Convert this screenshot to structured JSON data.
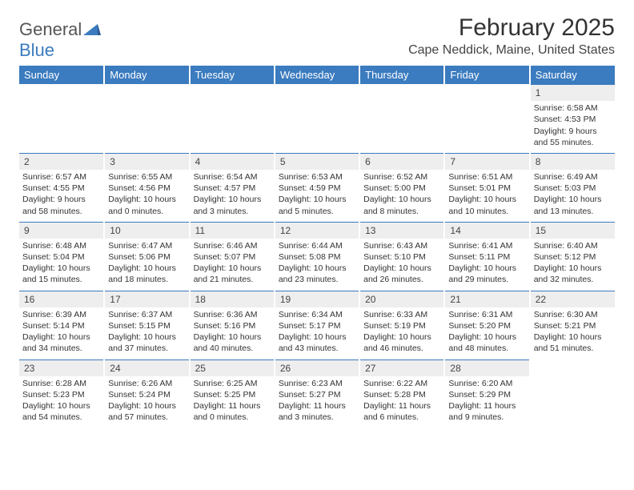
{
  "brand": {
    "part1": "General",
    "part2": "Blue"
  },
  "title": "February 2025",
  "location": "Cape Neddick, Maine, United States",
  "colors": {
    "header_bg": "#3b7bbf",
    "header_text": "#ffffff",
    "daynum_bg": "#eeeeee",
    "daynum_border": "#3b7bbf",
    "body_text": "#333333",
    "page_bg": "#ffffff"
  },
  "weekdays": [
    "Sunday",
    "Monday",
    "Tuesday",
    "Wednesday",
    "Thursday",
    "Friday",
    "Saturday"
  ],
  "weeks": [
    [
      null,
      null,
      null,
      null,
      null,
      null,
      {
        "n": "1",
        "sr": "6:58 AM",
        "ss": "4:53 PM",
        "dl": "9 hours and 55 minutes."
      }
    ],
    [
      {
        "n": "2",
        "sr": "6:57 AM",
        "ss": "4:55 PM",
        "dl": "9 hours and 58 minutes."
      },
      {
        "n": "3",
        "sr": "6:55 AM",
        "ss": "4:56 PM",
        "dl": "10 hours and 0 minutes."
      },
      {
        "n": "4",
        "sr": "6:54 AM",
        "ss": "4:57 PM",
        "dl": "10 hours and 3 minutes."
      },
      {
        "n": "5",
        "sr": "6:53 AM",
        "ss": "4:59 PM",
        "dl": "10 hours and 5 minutes."
      },
      {
        "n": "6",
        "sr": "6:52 AM",
        "ss": "5:00 PM",
        "dl": "10 hours and 8 minutes."
      },
      {
        "n": "7",
        "sr": "6:51 AM",
        "ss": "5:01 PM",
        "dl": "10 hours and 10 minutes."
      },
      {
        "n": "8",
        "sr": "6:49 AM",
        "ss": "5:03 PM",
        "dl": "10 hours and 13 minutes."
      }
    ],
    [
      {
        "n": "9",
        "sr": "6:48 AM",
        "ss": "5:04 PM",
        "dl": "10 hours and 15 minutes."
      },
      {
        "n": "10",
        "sr": "6:47 AM",
        "ss": "5:06 PM",
        "dl": "10 hours and 18 minutes."
      },
      {
        "n": "11",
        "sr": "6:46 AM",
        "ss": "5:07 PM",
        "dl": "10 hours and 21 minutes."
      },
      {
        "n": "12",
        "sr": "6:44 AM",
        "ss": "5:08 PM",
        "dl": "10 hours and 23 minutes."
      },
      {
        "n": "13",
        "sr": "6:43 AM",
        "ss": "5:10 PM",
        "dl": "10 hours and 26 minutes."
      },
      {
        "n": "14",
        "sr": "6:41 AM",
        "ss": "5:11 PM",
        "dl": "10 hours and 29 minutes."
      },
      {
        "n": "15",
        "sr": "6:40 AM",
        "ss": "5:12 PM",
        "dl": "10 hours and 32 minutes."
      }
    ],
    [
      {
        "n": "16",
        "sr": "6:39 AM",
        "ss": "5:14 PM",
        "dl": "10 hours and 34 minutes."
      },
      {
        "n": "17",
        "sr": "6:37 AM",
        "ss": "5:15 PM",
        "dl": "10 hours and 37 minutes."
      },
      {
        "n": "18",
        "sr": "6:36 AM",
        "ss": "5:16 PM",
        "dl": "10 hours and 40 minutes."
      },
      {
        "n": "19",
        "sr": "6:34 AM",
        "ss": "5:17 PM",
        "dl": "10 hours and 43 minutes."
      },
      {
        "n": "20",
        "sr": "6:33 AM",
        "ss": "5:19 PM",
        "dl": "10 hours and 46 minutes."
      },
      {
        "n": "21",
        "sr": "6:31 AM",
        "ss": "5:20 PM",
        "dl": "10 hours and 48 minutes."
      },
      {
        "n": "22",
        "sr": "6:30 AM",
        "ss": "5:21 PM",
        "dl": "10 hours and 51 minutes."
      }
    ],
    [
      {
        "n": "23",
        "sr": "6:28 AM",
        "ss": "5:23 PM",
        "dl": "10 hours and 54 minutes."
      },
      {
        "n": "24",
        "sr": "6:26 AM",
        "ss": "5:24 PM",
        "dl": "10 hours and 57 minutes."
      },
      {
        "n": "25",
        "sr": "6:25 AM",
        "ss": "5:25 PM",
        "dl": "11 hours and 0 minutes."
      },
      {
        "n": "26",
        "sr": "6:23 AM",
        "ss": "5:27 PM",
        "dl": "11 hours and 3 minutes."
      },
      {
        "n": "27",
        "sr": "6:22 AM",
        "ss": "5:28 PM",
        "dl": "11 hours and 6 minutes."
      },
      {
        "n": "28",
        "sr": "6:20 AM",
        "ss": "5:29 PM",
        "dl": "11 hours and 9 minutes."
      },
      null
    ]
  ],
  "labels": {
    "sunrise": "Sunrise: ",
    "sunset": "Sunset: ",
    "daylight": "Daylight: "
  }
}
